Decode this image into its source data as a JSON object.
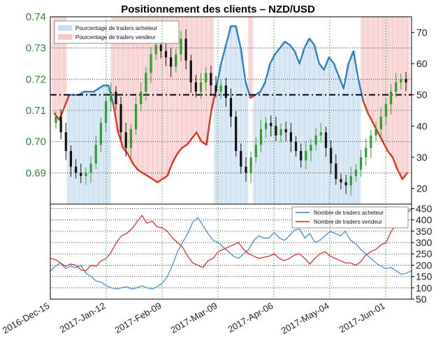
{
  "chart_data": [
    {
      "type": "line",
      "title": "Positionnement des clients – NZD/USD",
      "x_tick_labels": [
        "2016-Dec-15",
        "2017-Jan-12",
        "2017-Feb-09",
        "2017-Mar-09",
        "2017-Apr-06",
        "2017-May-04",
        "2017-Jun-01"
      ],
      "left_axis": {
        "ticks": [
          "0.69",
          "0.70",
          "0.71",
          "0.72",
          "0.73",
          "0.74"
        ],
        "ylim": [
          0.68,
          0.74
        ]
      },
      "right_axis": {
        "ticks": [
          "20",
          "30",
          "40",
          "50",
          "60",
          "70"
        ],
        "ylim": [
          15,
          75
        ],
        "reference_line": 50
      },
      "legend": [
        {
          "label": "Pourcentage de traders acheteur",
          "color": "#c9dff2"
        },
        {
          "label": "Pourcentage de traders vendeur",
          "color": "#f6c9c9"
        }
      ],
      "price_series_close": [
        0.708,
        0.703,
        0.697,
        0.692,
        0.69,
        0.689,
        0.69,
        0.693,
        0.699,
        0.706,
        0.713,
        0.716,
        0.712,
        0.703,
        0.698,
        0.704,
        0.712,
        0.716,
        0.722,
        0.728,
        0.731,
        0.729,
        0.727,
        0.724,
        0.728,
        0.733,
        0.726,
        0.719,
        0.716,
        0.719,
        0.722,
        0.718,
        0.716,
        0.718,
        0.714,
        0.708,
        0.697,
        0.692,
        0.69,
        0.695,
        0.699,
        0.704,
        0.706,
        0.705,
        0.702,
        0.704,
        0.703,
        0.7,
        0.697,
        0.694,
        0.697,
        0.699,
        0.702,
        0.703,
        0.698,
        0.693,
        0.688,
        0.687,
        0.686,
        0.689,
        0.691,
        0.695,
        0.698,
        0.702,
        0.704,
        0.708,
        0.712,
        0.716,
        0.719,
        0.72,
        0.719
      ],
      "sentiment_percent": [
        44,
        42,
        46,
        50,
        50,
        50,
        51,
        51,
        51,
        52,
        53,
        53,
        47,
        38,
        33,
        31,
        28,
        26,
        25,
        24,
        23,
        22,
        23,
        24,
        28,
        31,
        33,
        34,
        36,
        38,
        35,
        34,
        45,
        52,
        60,
        66,
        72,
        72,
        65,
        54,
        49,
        50,
        51,
        54,
        60,
        63,
        65,
        67,
        66,
        64,
        60,
        65,
        68,
        66,
        60,
        58,
        62,
        60,
        56,
        52,
        60,
        64,
        55,
        48,
        44,
        41,
        38,
        35,
        32,
        30,
        26,
        23,
        25
      ]
    },
    {
      "type": "line",
      "right_axis": {
        "ticks": [
          "50",
          "100",
          "150",
          "200",
          "250",
          "300",
          "350",
          "400",
          "450"
        ],
        "ylim": [
          50,
          470
        ]
      },
      "series": [
        {
          "name": "Nombre de traders acheteur",
          "color": "#3a86d8",
          "values": [
            175,
            195,
            210,
            185,
            195,
            190,
            200,
            165,
            150,
            130,
            125,
            110,
            100,
            95,
            100,
            105,
            95,
            100,
            110,
            100,
            95,
            105,
            120,
            150,
            200,
            260,
            300,
            340,
            390,
            410,
            375,
            340,
            310,
            300,
            280,
            260,
            240,
            230,
            250,
            270,
            310,
            330,
            320,
            320,
            345,
            320,
            310,
            330,
            355,
            360,
            320,
            340,
            300,
            310,
            330,
            350,
            340,
            330,
            350,
            310,
            295,
            270,
            250,
            230,
            210,
            195,
            185,
            190,
            175,
            160,
            165,
            175
          ]
        },
        {
          "name": "Nombre de traders vendeur",
          "color": "#dd2222",
          "values": [
            230,
            225,
            210,
            195,
            205,
            200,
            180,
            175,
            200,
            195,
            220,
            230,
            260,
            300,
            330,
            340,
            360,
            390,
            420,
            385,
            395,
            370,
            365,
            350,
            320,
            300,
            280,
            240,
            210,
            200,
            190,
            220,
            230,
            260,
            270,
            280,
            290,
            300,
            270,
            250,
            240,
            230,
            235,
            240,
            250,
            230,
            220,
            230,
            245,
            250,
            230,
            205,
            230,
            250,
            260,
            240,
            230,
            220,
            210,
            210,
            200,
            215,
            245,
            260,
            270,
            290,
            300,
            350,
            380,
            410,
            430,
            450
          ]
        }
      ]
    }
  ]
}
